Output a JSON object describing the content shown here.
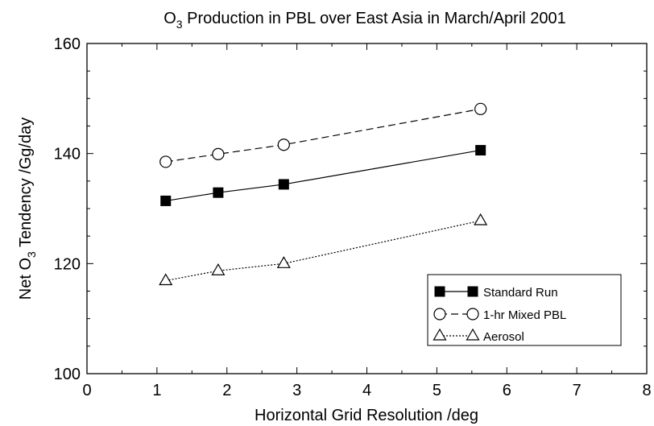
{
  "chart_data": {
    "type": "line",
    "title": {
      "pre": "O",
      "sub": "3",
      "post": " Production in PBL over East Asia in March/April 2001"
    },
    "xlabel": "Horizontal Grid Resolution  /deg",
    "ylabel": {
      "pre": "Net O",
      "sub": "3",
      "post": " Tendency  /Gg/day"
    },
    "xlim": [
      0,
      8
    ],
    "ylim": [
      100,
      160
    ],
    "xticks": [
      0,
      1,
      2,
      3,
      4,
      5,
      6,
      7,
      8
    ],
    "yticks": [
      100,
      120,
      140,
      160
    ],
    "grid": false,
    "legend_position": "lower-right",
    "series": [
      {
        "name": "Standard Run",
        "marker": "filled-square",
        "line": "solid",
        "x": [
          1.125,
          1.875,
          2.8125,
          5.625
        ],
        "y": [
          131.4,
          132.9,
          134.4,
          140.6
        ]
      },
      {
        "name": "1-hr Mixed PBL",
        "marker": "open-circle",
        "line": "dashed",
        "x": [
          1.125,
          1.875,
          2.8125,
          5.625
        ],
        "y": [
          138.5,
          139.9,
          141.6,
          148.1
        ]
      },
      {
        "name": "Aerosol",
        "marker": "open-triangle",
        "line": "dotted",
        "x": [
          1.125,
          1.875,
          2.8125,
          5.625
        ],
        "y": [
          116.9,
          118.7,
          120.0,
          127.8
        ]
      }
    ]
  }
}
